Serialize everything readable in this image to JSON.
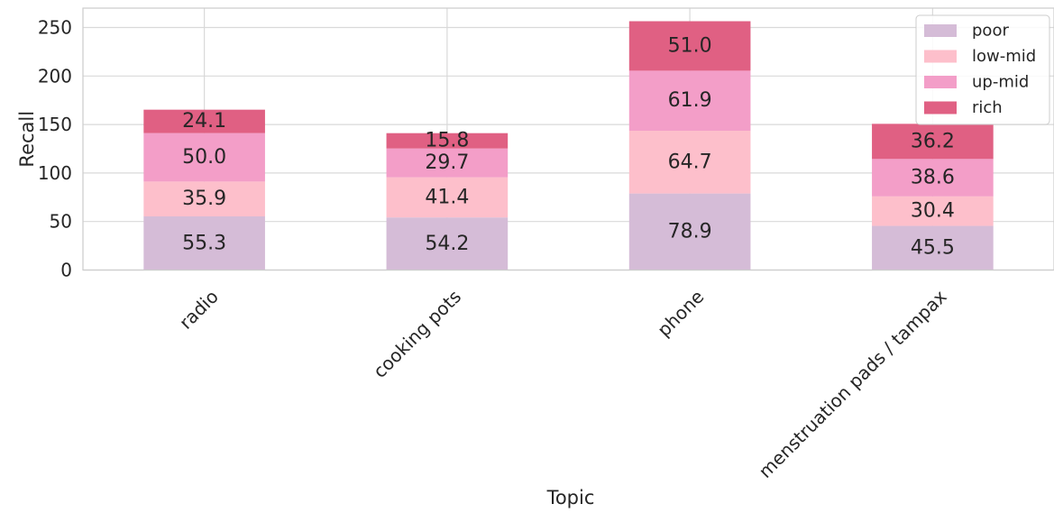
{
  "chart_data": {
    "type": "bar",
    "stacked": true,
    "title": "",
    "xlabel": "Topic",
    "ylabel": "Recall",
    "categories": [
      "radio",
      "cooking pots",
      "phone",
      "menstruation pads / tampax"
    ],
    "series": [
      {
        "name": "poor",
        "values": [
          55.3,
          54.2,
          78.9,
          45.5
        ],
        "color": "#d5bcd7"
      },
      {
        "name": "low-mid",
        "values": [
          35.9,
          41.4,
          64.7,
          30.4
        ],
        "color": "#fdbfcb"
      },
      {
        "name": "up-mid",
        "values": [
          50.0,
          29.7,
          61.9,
          38.6
        ],
        "color": "#f39ec8"
      },
      {
        "name": "rich",
        "values": [
          24.1,
          15.8,
          51.0,
          36.2
        ],
        "color": "#e06083"
      }
    ],
    "ylim": [
      0,
      270
    ],
    "yticks": [
      0,
      50,
      100,
      150,
      200,
      250
    ],
    "grid": true,
    "legend_position": "top-right",
    "bar_labels": true
  }
}
